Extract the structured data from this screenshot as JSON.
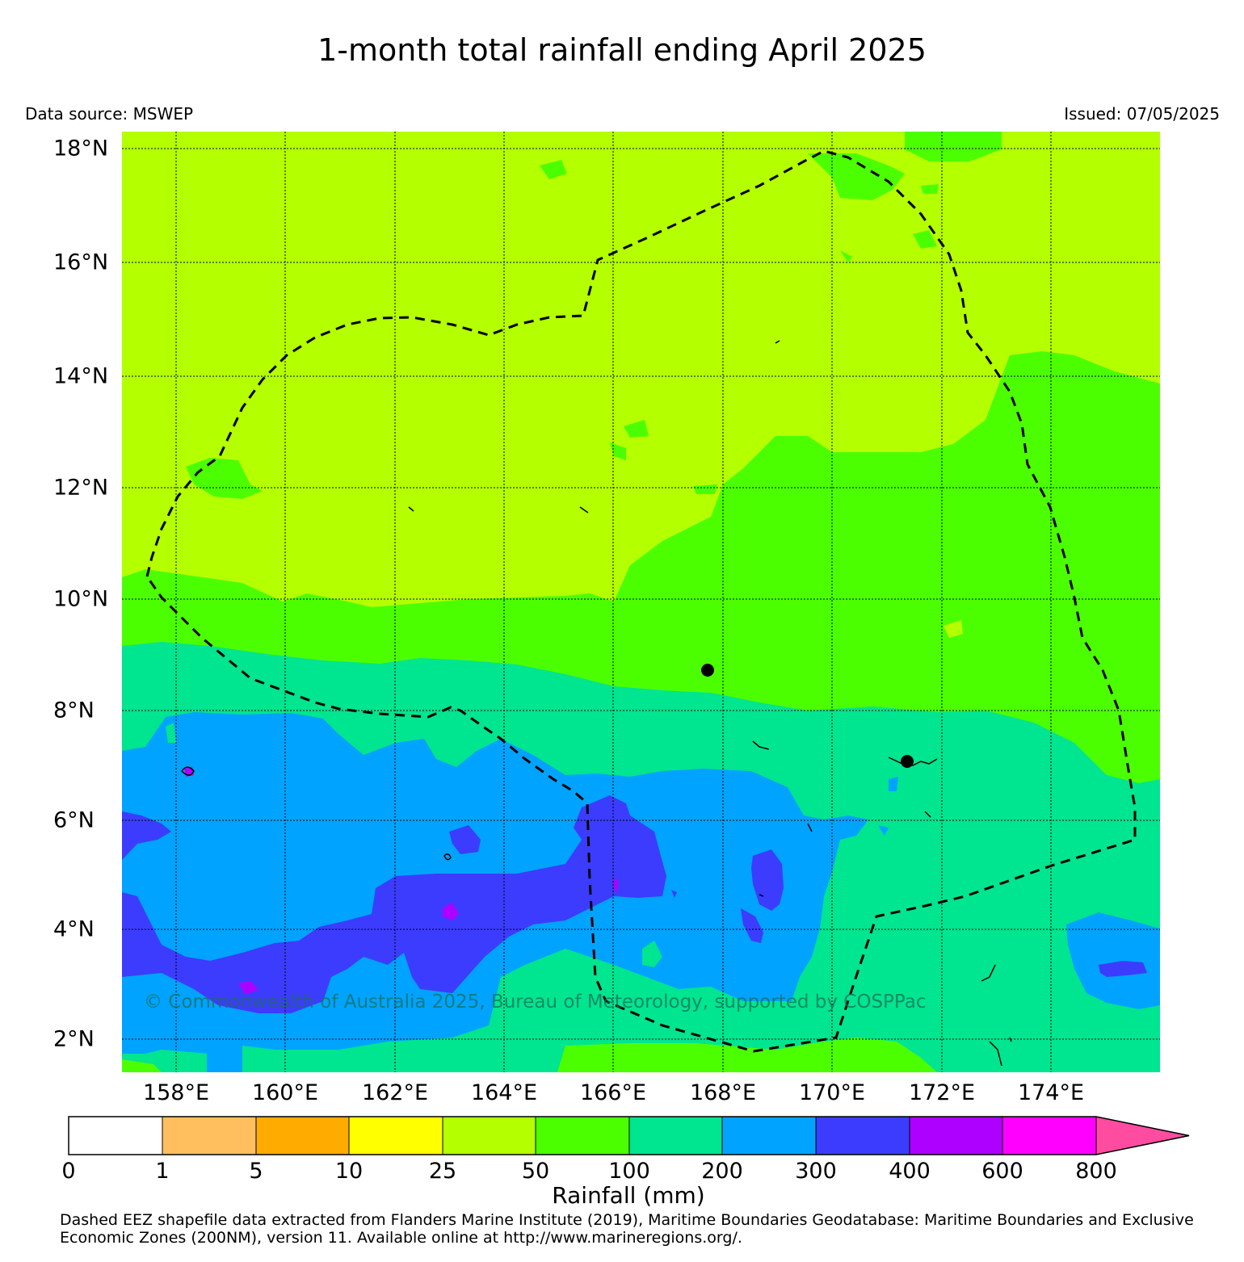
{
  "map": {
    "title": "1-month total rainfall ending April 2025",
    "data_source": "Data source: MSWEP",
    "issued": "Issued: 07/05/2025",
    "copyright": "© Commonwealth of Australia 2025, Bureau of Meteorology, supported by COSPPac",
    "lat_labels": [
      "18°N",
      "16°N",
      "14°N",
      "12°N",
      "10°N",
      "8°N",
      "6°N",
      "4°N",
      "2°N"
    ],
    "lon_labels": [
      "158°E",
      "160°E",
      "162°E",
      "164°E",
      "166°E",
      "168°E",
      "170°E",
      "172°E",
      "174°E"
    ],
    "extent": {
      "lon": [
        157.0,
        176.0
      ],
      "lat": [
        1.4,
        18.3
      ]
    },
    "features": [
      "Dashed EEZ boundary",
      "Islands",
      "Locations marked with black dots"
    ]
  },
  "legend": {
    "title": "Rainfall (mm)",
    "ticks": [
      "0",
      "1",
      "5",
      "10",
      "25",
      "50",
      "100",
      "200",
      "300",
      "400",
      "600",
      "800"
    ],
    "colors": [
      "#ffffff",
      "#ffbf5f",
      "#ffab00",
      "#ffff00",
      "#b4ff00",
      "#4cff00",
      "#00e58f",
      "#00a3ff",
      "#3c3cff",
      "#ad00ff",
      "#ff00ff",
      "#ff4ca0"
    ]
  },
  "footer": {
    "line1": "Dashed EEZ shapefile data extracted from Flanders Marine Institute (2019), Maritime Boundaries Geodatabase: Maritime Boundaries and Exclusive",
    "line2": "Economic Zones (200NM), version 11. Available online at http://www.marineregions.org/."
  }
}
